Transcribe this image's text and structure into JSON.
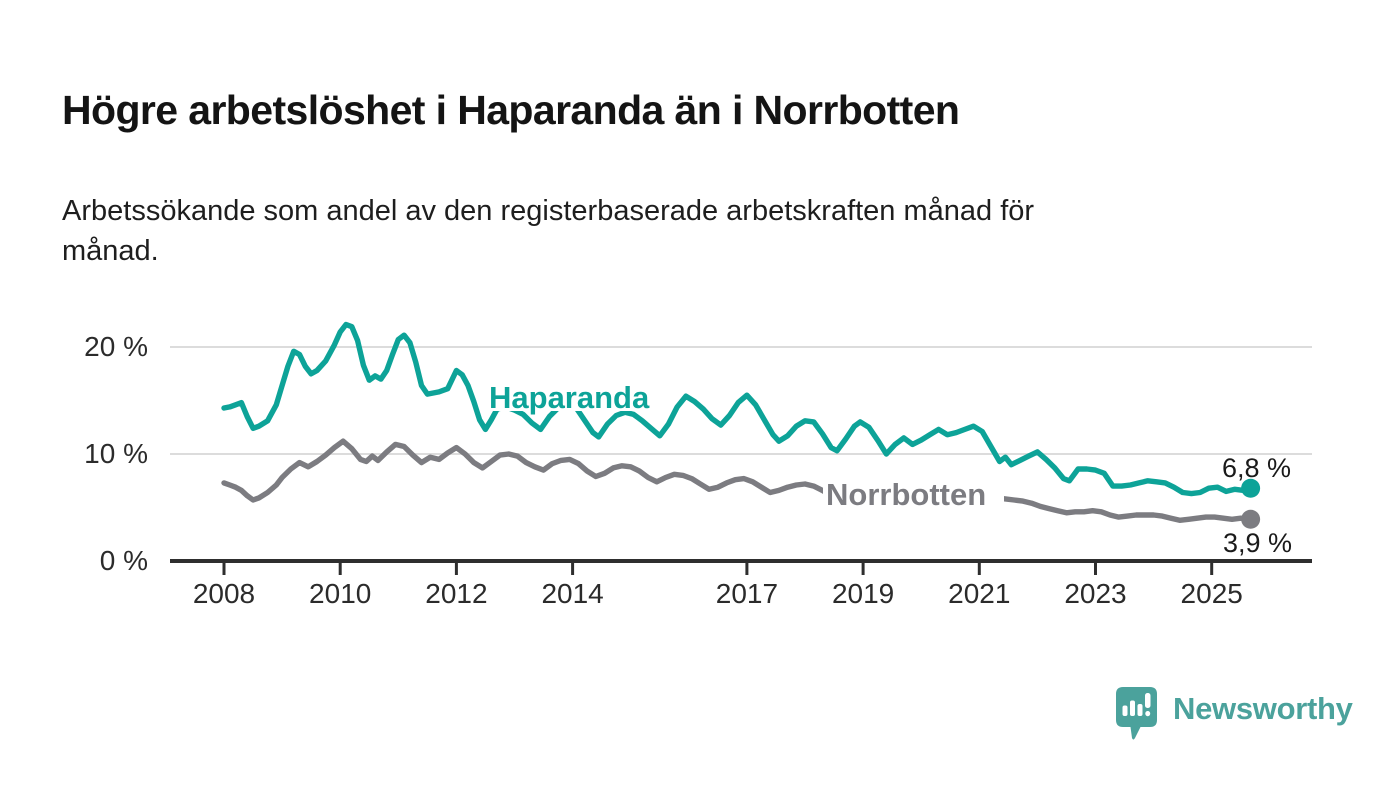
{
  "header": {
    "title": "Högre arbetslöshet i Haparanda än i Norrbotten",
    "subtitle": "Arbetssökande som andel av den registerbaserade arbetskraften månad för\nmånad."
  },
  "chart_data": {
    "type": "line",
    "title": "Högre arbetslöshet i Haparanda än i Norrbotten",
    "xlabel": "",
    "ylabel": "Arbetssökande som andel av den registerbaserade arbetskraften",
    "unit": "%",
    "grid": true,
    "legend_position": "inline-on-chart",
    "ylim": [
      0,
      23
    ],
    "x_range": [
      2008,
      2025.67
    ],
    "y_ticks": [
      {
        "value": 0,
        "label": "0 %"
      },
      {
        "value": 10,
        "label": "10 %"
      },
      {
        "value": 20,
        "label": "20 %"
      }
    ],
    "x_ticks": [
      {
        "value": 2008,
        "label": "2008"
      },
      {
        "value": 2010,
        "label": "2010"
      },
      {
        "value": 2012,
        "label": "2012"
      },
      {
        "value": 2014,
        "label": "2014"
      },
      {
        "value": 2017,
        "label": "2017"
      },
      {
        "value": 2019,
        "label": "2019"
      },
      {
        "value": 2021,
        "label": "2021"
      },
      {
        "value": 2023,
        "label": "2023"
      },
      {
        "value": 2025,
        "label": "2025"
      }
    ],
    "series": [
      {
        "name": "Haparanda",
        "color": "#0da398",
        "end_value": 6.8,
        "end_label": "6,8 %",
        "points": [
          [
            2008.0,
            14.3
          ],
          [
            2008.1,
            14.4
          ],
          [
            2008.2,
            14.6
          ],
          [
            2008.3,
            14.8
          ],
          [
            2008.4,
            13.5
          ],
          [
            2008.5,
            12.4
          ],
          [
            2008.6,
            12.6
          ],
          [
            2008.75,
            13.1
          ],
          [
            2008.9,
            14.6
          ],
          [
            2009.0,
            16.4
          ],
          [
            2009.1,
            18.2
          ],
          [
            2009.2,
            19.6
          ],
          [
            2009.3,
            19.3
          ],
          [
            2009.4,
            18.2
          ],
          [
            2009.5,
            17.5
          ],
          [
            2009.6,
            17.8
          ],
          [
            2009.75,
            18.7
          ],
          [
            2009.9,
            20.2
          ],
          [
            2010.0,
            21.4
          ],
          [
            2010.1,
            22.1
          ],
          [
            2010.2,
            21.9
          ],
          [
            2010.3,
            20.6
          ],
          [
            2010.4,
            18.3
          ],
          [
            2010.5,
            16.9
          ],
          [
            2010.6,
            17.3
          ],
          [
            2010.7,
            17.0
          ],
          [
            2010.8,
            17.8
          ],
          [
            2010.9,
            19.3
          ],
          [
            2011.0,
            20.7
          ],
          [
            2011.1,
            21.1
          ],
          [
            2011.2,
            20.4
          ],
          [
            2011.3,
            18.6
          ],
          [
            2011.4,
            16.4
          ],
          [
            2011.5,
            15.6
          ],
          [
            2011.6,
            15.7
          ],
          [
            2011.7,
            15.8
          ],
          [
            2011.85,
            16.1
          ],
          [
            2012.0,
            17.8
          ],
          [
            2012.1,
            17.4
          ],
          [
            2012.2,
            16.4
          ],
          [
            2012.3,
            14.9
          ],
          [
            2012.4,
            13.2
          ],
          [
            2012.5,
            12.3
          ],
          [
            2012.6,
            13.2
          ],
          [
            2012.7,
            14.2
          ],
          [
            2012.85,
            14.4
          ],
          [
            2013.0,
            14.1
          ],
          [
            2013.15,
            13.7
          ],
          [
            2013.3,
            12.9
          ],
          [
            2013.45,
            12.3
          ],
          [
            2013.6,
            13.5
          ],
          [
            2013.75,
            14.3
          ],
          [
            2013.9,
            14.6
          ],
          [
            2014.05,
            14.4
          ],
          [
            2014.2,
            13.2
          ],
          [
            2014.35,
            12.0
          ],
          [
            2014.45,
            11.6
          ],
          [
            2014.6,
            12.8
          ],
          [
            2014.75,
            13.6
          ],
          [
            2014.9,
            13.9
          ],
          [
            2015.05,
            13.7
          ],
          [
            2015.2,
            13.1
          ],
          [
            2015.35,
            12.4
          ],
          [
            2015.5,
            11.7
          ],
          [
            2015.65,
            12.8
          ],
          [
            2015.8,
            14.4
          ],
          [
            2015.95,
            15.4
          ],
          [
            2016.1,
            14.9
          ],
          [
            2016.25,
            14.2
          ],
          [
            2016.4,
            13.3
          ],
          [
            2016.55,
            12.7
          ],
          [
            2016.7,
            13.6
          ],
          [
            2016.85,
            14.8
          ],
          [
            2017.0,
            15.5
          ],
          [
            2017.15,
            14.6
          ],
          [
            2017.3,
            13.2
          ],
          [
            2017.45,
            11.8
          ],
          [
            2017.55,
            11.2
          ],
          [
            2017.7,
            11.7
          ],
          [
            2017.85,
            12.6
          ],
          [
            2018.0,
            13.1
          ],
          [
            2018.15,
            13.0
          ],
          [
            2018.3,
            11.9
          ],
          [
            2018.45,
            10.6
          ],
          [
            2018.55,
            10.3
          ],
          [
            2018.7,
            11.4
          ],
          [
            2018.85,
            12.6
          ],
          [
            2018.95,
            13.0
          ],
          [
            2019.1,
            12.5
          ],
          [
            2019.25,
            11.3
          ],
          [
            2019.4,
            10.0
          ],
          [
            2019.55,
            10.9
          ],
          [
            2019.7,
            11.5
          ],
          [
            2019.85,
            10.9
          ],
          [
            2020.0,
            11.3
          ],
          [
            2020.15,
            11.8
          ],
          [
            2020.3,
            12.3
          ],
          [
            2020.45,
            11.8
          ],
          [
            2020.6,
            12.0
          ],
          [
            2020.75,
            12.3
          ],
          [
            2020.9,
            12.6
          ],
          [
            2021.05,
            12.1
          ],
          [
            2021.2,
            10.7
          ],
          [
            2021.35,
            9.3
          ],
          [
            2021.45,
            9.7
          ],
          [
            2021.55,
            9.0
          ],
          [
            2021.7,
            9.4
          ],
          [
            2021.85,
            9.8
          ],
          [
            2022.0,
            10.2
          ],
          [
            2022.15,
            9.5
          ],
          [
            2022.3,
            8.7
          ],
          [
            2022.45,
            7.7
          ],
          [
            2022.55,
            7.5
          ],
          [
            2022.7,
            8.6
          ],
          [
            2022.85,
            8.6
          ],
          [
            2023.0,
            8.5
          ],
          [
            2023.15,
            8.2
          ],
          [
            2023.3,
            7.0
          ],
          [
            2023.45,
            7.0
          ],
          [
            2023.6,
            7.1
          ],
          [
            2023.75,
            7.3
          ],
          [
            2023.9,
            7.5
          ],
          [
            2024.05,
            7.4
          ],
          [
            2024.2,
            7.3
          ],
          [
            2024.35,
            6.9
          ],
          [
            2024.5,
            6.4
          ],
          [
            2024.65,
            6.3
          ],
          [
            2024.8,
            6.4
          ],
          [
            2024.95,
            6.8
          ],
          [
            2025.1,
            6.9
          ],
          [
            2025.25,
            6.5
          ],
          [
            2025.4,
            6.7
          ],
          [
            2025.55,
            6.6
          ],
          [
            2025.67,
            6.8
          ]
        ]
      },
      {
        "name": "Norrbotten",
        "color": "#7c7c81",
        "end_value": 3.9,
        "end_label": "3,9 %",
        "points": [
          [
            2008.0,
            7.3
          ],
          [
            2008.1,
            7.1
          ],
          [
            2008.2,
            6.9
          ],
          [
            2008.3,
            6.6
          ],
          [
            2008.4,
            6.1
          ],
          [
            2008.5,
            5.7
          ],
          [
            2008.6,
            5.9
          ],
          [
            2008.75,
            6.4
          ],
          [
            2008.9,
            7.1
          ],
          [
            2009.0,
            7.8
          ],
          [
            2009.15,
            8.6
          ],
          [
            2009.3,
            9.2
          ],
          [
            2009.45,
            8.8
          ],
          [
            2009.6,
            9.3
          ],
          [
            2009.75,
            9.9
          ],
          [
            2009.9,
            10.6
          ],
          [
            2010.05,
            11.2
          ],
          [
            2010.2,
            10.5
          ],
          [
            2010.35,
            9.5
          ],
          [
            2010.45,
            9.3
          ],
          [
            2010.55,
            9.8
          ],
          [
            2010.65,
            9.4
          ],
          [
            2010.8,
            10.2
          ],
          [
            2010.95,
            10.9
          ],
          [
            2011.1,
            10.7
          ],
          [
            2011.25,
            9.9
          ],
          [
            2011.4,
            9.2
          ],
          [
            2011.55,
            9.7
          ],
          [
            2011.7,
            9.5
          ],
          [
            2011.85,
            10.1
          ],
          [
            2012.0,
            10.6
          ],
          [
            2012.15,
            10.0
          ],
          [
            2012.3,
            9.2
          ],
          [
            2012.45,
            8.7
          ],
          [
            2012.6,
            9.3
          ],
          [
            2012.75,
            9.9
          ],
          [
            2012.9,
            10.0
          ],
          [
            2013.05,
            9.8
          ],
          [
            2013.2,
            9.2
          ],
          [
            2013.35,
            8.8
          ],
          [
            2013.5,
            8.5
          ],
          [
            2013.65,
            9.1
          ],
          [
            2013.8,
            9.4
          ],
          [
            2013.95,
            9.5
          ],
          [
            2014.1,
            9.1
          ],
          [
            2014.25,
            8.4
          ],
          [
            2014.4,
            7.9
          ],
          [
            2014.55,
            8.2
          ],
          [
            2014.7,
            8.7
          ],
          [
            2014.85,
            8.9
          ],
          [
            2015.0,
            8.8
          ],
          [
            2015.15,
            8.4
          ],
          [
            2015.3,
            7.8
          ],
          [
            2015.45,
            7.4
          ],
          [
            2015.6,
            7.8
          ],
          [
            2015.75,
            8.1
          ],
          [
            2015.9,
            8.0
          ],
          [
            2016.05,
            7.7
          ],
          [
            2016.2,
            7.2
          ],
          [
            2016.35,
            6.7
          ],
          [
            2016.5,
            6.9
          ],
          [
            2016.65,
            7.3
          ],
          [
            2016.8,
            7.6
          ],
          [
            2016.95,
            7.7
          ],
          [
            2017.1,
            7.4
          ],
          [
            2017.25,
            6.9
          ],
          [
            2017.4,
            6.4
          ],
          [
            2017.55,
            6.6
          ],
          [
            2017.7,
            6.9
          ],
          [
            2017.85,
            7.1
          ],
          [
            2018.0,
            7.2
          ],
          [
            2018.15,
            7.0
          ],
          [
            2018.3,
            6.6
          ],
          [
            2018.45,
            6.1
          ],
          [
            2018.6,
            6.2
          ],
          [
            2018.75,
            6.6
          ],
          [
            2018.9,
            6.9
          ],
          [
            2019.05,
            6.8
          ],
          [
            2019.2,
            6.4
          ],
          [
            2019.35,
            5.9
          ],
          [
            2019.5,
            6.1
          ],
          [
            2019.65,
            6.4
          ],
          [
            2019.8,
            6.6
          ],
          [
            2019.95,
            6.8
          ],
          [
            2020.1,
            7.2
          ],
          [
            2020.25,
            7.5
          ],
          [
            2020.4,
            7.5
          ],
          [
            2020.55,
            7.4
          ],
          [
            2020.7,
            7.2
          ],
          [
            2020.85,
            7.0
          ],
          [
            2021.0,
            6.7
          ],
          [
            2021.15,
            6.2
          ],
          [
            2021.3,
            5.9
          ],
          [
            2021.45,
            5.8
          ],
          [
            2021.6,
            5.7
          ],
          [
            2021.75,
            5.6
          ],
          [
            2021.9,
            5.4
          ],
          [
            2022.05,
            5.1
          ],
          [
            2022.2,
            4.9
          ],
          [
            2022.35,
            4.7
          ],
          [
            2022.5,
            4.5
          ],
          [
            2022.65,
            4.6
          ],
          [
            2022.8,
            4.6
          ],
          [
            2022.95,
            4.7
          ],
          [
            2023.1,
            4.6
          ],
          [
            2023.25,
            4.3
          ],
          [
            2023.4,
            4.1
          ],
          [
            2023.55,
            4.2
          ],
          [
            2023.7,
            4.3
          ],
          [
            2023.85,
            4.3
          ],
          [
            2024.0,
            4.3
          ],
          [
            2024.15,
            4.2
          ],
          [
            2024.3,
            4.0
          ],
          [
            2024.45,
            3.8
          ],
          [
            2024.6,
            3.9
          ],
          [
            2024.75,
            4.0
          ],
          [
            2024.9,
            4.1
          ],
          [
            2025.05,
            4.1
          ],
          [
            2025.2,
            4.0
          ],
          [
            2025.35,
            3.9
          ],
          [
            2025.5,
            4.0
          ],
          [
            2025.67,
            3.9
          ]
        ]
      }
    ],
    "colors": {
      "haparanda": "#0da398",
      "norrbotten": "#7c7c81",
      "gridline": "#dcdcdc",
      "axis": "#2e2e2e",
      "text": "#2b2b2b"
    }
  },
  "footer": {
    "brand": "Newsworthy",
    "brand_color": "#4ba29c"
  }
}
